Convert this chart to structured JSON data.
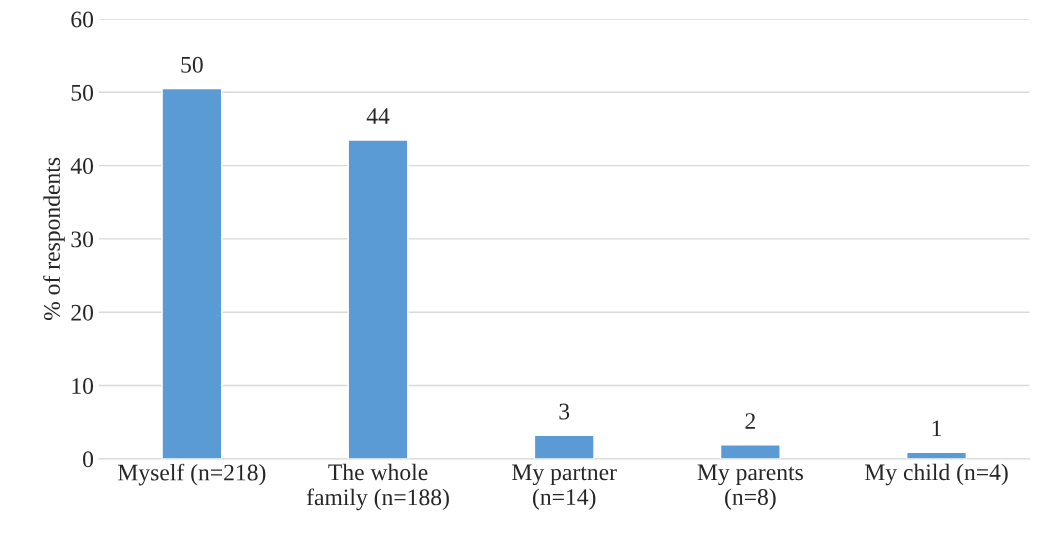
{
  "chart_data": {
    "type": "bar",
    "ylabel": "% of respondents",
    "categories": [
      "Myself (n=218)",
      "The whole\nfamily (n=188)",
      "My partner\n(n=14)",
      "My parents\n(n=8)",
      "My child (n=4)"
    ],
    "values": [
      50.5,
      43.5,
      3.2,
      1.9,
      0.9
    ],
    "value_labels": [
      "50",
      "44",
      "3",
      "2",
      "1"
    ],
    "color": "#5b9bd5",
    "ylim": [
      0,
      60
    ],
    "yticks": [
      0,
      10,
      20,
      30,
      40,
      50,
      60
    ],
    "grid": "y"
  }
}
